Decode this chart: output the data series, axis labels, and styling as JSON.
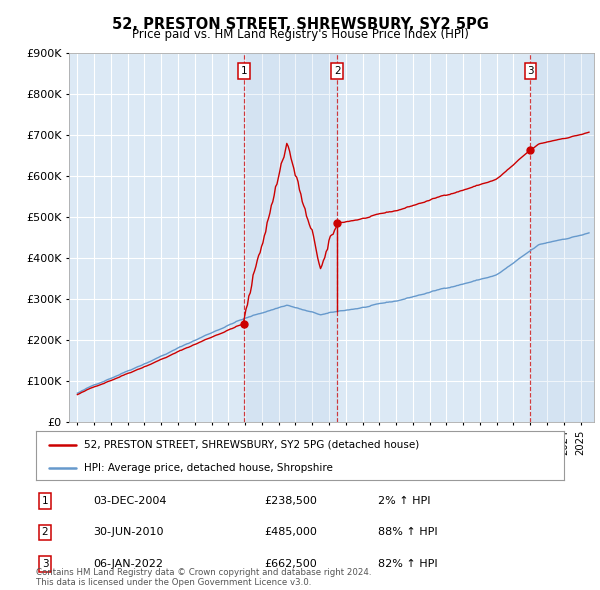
{
  "title_line1": "52, PRESTON STREET, SHREWSBURY, SY2 5PG",
  "title_line2": "Price paid vs. HM Land Registry's House Price Index (HPI)",
  "background_color": "#ffffff",
  "plot_bg_color": "#dce9f5",
  "grid_color": "#ffffff",
  "line1_color": "#cc0000",
  "line2_color": "#6699cc",
  "sale_marker_color": "#cc0000",
  "sale_prices": [
    238500,
    485000,
    662500
  ],
  "sale_labels": [
    "1",
    "2",
    "3"
  ],
  "sale_pct": [
    "2%",
    "88%",
    "82%"
  ],
  "sale_date_labels": [
    "03-DEC-2004",
    "30-JUN-2010",
    "06-JAN-2022"
  ],
  "sale_price_labels": [
    "£238,500",
    "£485,000",
    "£662,500"
  ],
  "legend_label1": "52, PRESTON STREET, SHREWSBURY, SY2 5PG (detached house)",
  "legend_label2": "HPI: Average price, detached house, Shropshire",
  "footer": "Contains HM Land Registry data © Crown copyright and database right 2024.\nThis data is licensed under the Open Government Licence v3.0.",
  "ylim": [
    0,
    900000
  ],
  "yticks": [
    0,
    100000,
    200000,
    300000,
    400000,
    500000,
    600000,
    700000,
    800000,
    900000
  ],
  "sale_times": [
    2004.917,
    2010.5,
    2022.014
  ],
  "hpi_seed": 42,
  "xlim_left": 1994.5,
  "xlim_right": 2025.8
}
